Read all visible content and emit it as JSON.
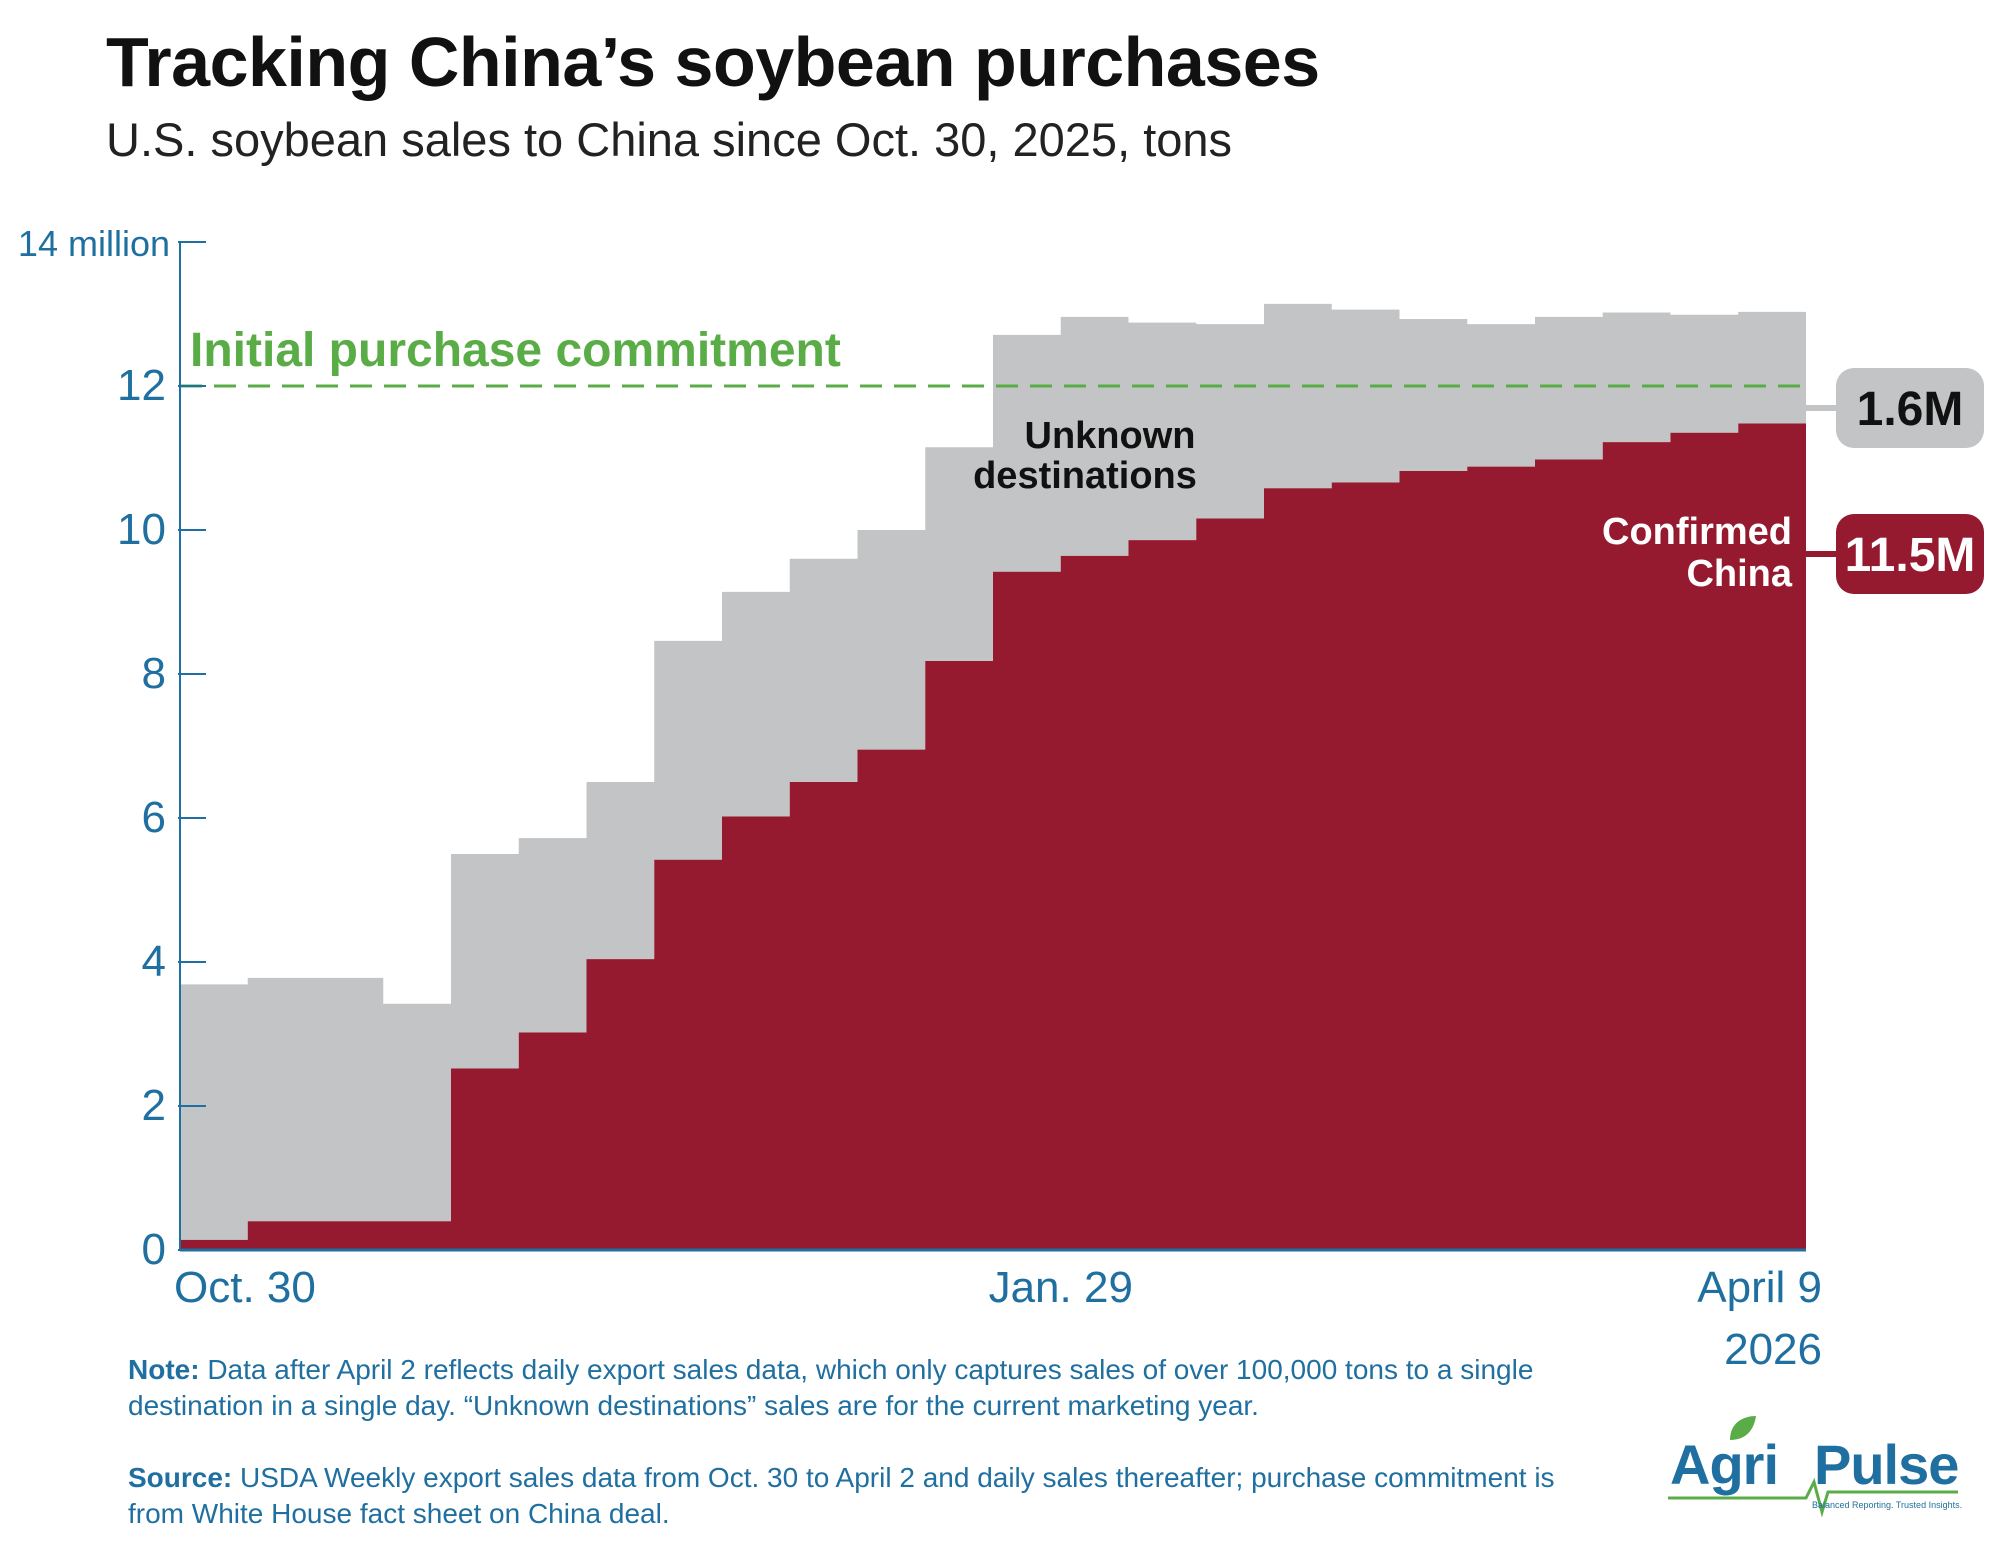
{
  "title": "Tracking China’s soybean purchases",
  "subtitle": "U.S. soybean sales to China since Oct. 30, 2025, tons",
  "chart_data": {
    "type": "area",
    "stacked": true,
    "step": true,
    "periods": 24,
    "x_tick_labels": [
      {
        "index": 0,
        "label": "Oct. 30"
      },
      {
        "index": 13,
        "label": "Jan. 29"
      },
      {
        "index": 24,
        "label": "April 9",
        "sublabel": "2026"
      }
    ],
    "y_tick_labels": [
      "0",
      "2",
      "4",
      "6",
      "8",
      "10",
      "12",
      "14 million"
    ],
    "ylim": [
      0,
      14
    ],
    "series": [
      {
        "name": "Confirmed China",
        "color": "#961a2f",
        "values": [
          0.14,
          0.4,
          0.4,
          0.4,
          2.52,
          3.02,
          4.04,
          5.42,
          6.02,
          6.5,
          6.95,
          8.18,
          9.42,
          9.64,
          9.86,
          10.16,
          10.58,
          10.66,
          10.82,
          10.88,
          10.98,
          11.22,
          11.35,
          11.48
        ]
      },
      {
        "name": "Unknown destinations",
        "color": "#c3c4c6",
        "values": [
          3.55,
          3.38,
          3.38,
          3.02,
          2.98,
          2.7,
          2.46,
          3.04,
          3.12,
          3.1,
          3.05,
          2.97,
          3.29,
          3.32,
          3.02,
          2.7,
          2.56,
          2.4,
          2.11,
          1.98,
          1.98,
          1.8,
          1.64,
          1.55
        ]
      }
    ],
    "reference_line": {
      "value": 12,
      "label": "Initial purchase commitment",
      "color": "#5aac47",
      "style": "dashed"
    },
    "end_labels": [
      {
        "series": "Unknown destinations",
        "value_label": "1.6M",
        "color": "#c3c4c6",
        "text_color": "#111111"
      },
      {
        "series": "Confirmed China",
        "value_label": "11.5M",
        "color": "#961a2f",
        "text_color": "#ffffff"
      }
    ],
    "area_labels": {
      "unknown": [
        "Unknown",
        "destinations"
      ],
      "confirmed": [
        "Confirmed",
        "China"
      ]
    },
    "axis_color": "#1f6fa0"
  },
  "notes": {
    "note_label": "Note:",
    "note_text": " Data after April 2 reflects daily export sales data, which only captures sales of over 100,000 tons to a single destination in a single day. “Unknown destinations” sales are for the current marketing year.",
    "source_label": "Source:",
    "source_text": " USDA Weekly export sales data from Oct. 30 to April 2 and daily sales thereafter; purchase commitment is from White House fact sheet on China deal."
  },
  "logo": {
    "part1": "Agri",
    "part2": "Pulse",
    "tagline": "Balanced Reporting. Trusted Insights.",
    "green": "#5aac47",
    "blue": "#1f6fa0"
  }
}
